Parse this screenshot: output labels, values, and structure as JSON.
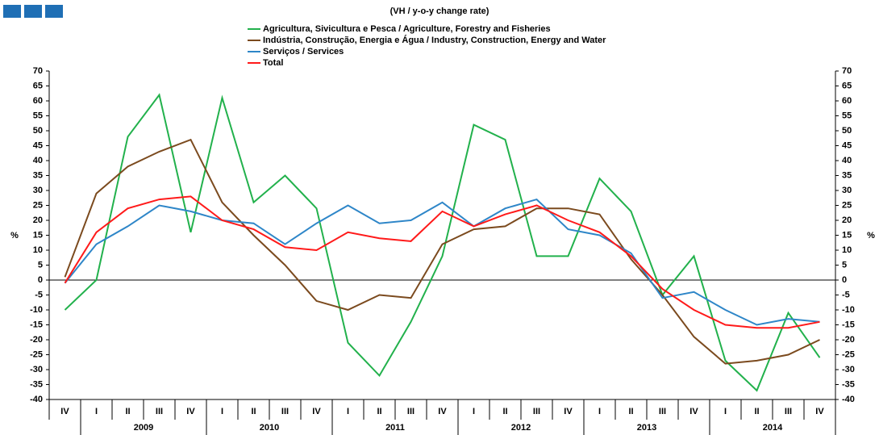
{
  "chart_data": {
    "type": "line",
    "subtitle": "(VH / y-o-y change rate)",
    "y_label": "%",
    "categories": [
      "IV",
      "I",
      "II",
      "III",
      "IV",
      "I",
      "II",
      "III",
      "IV",
      "I",
      "II",
      "III",
      "IV",
      "I",
      "II",
      "III",
      "IV",
      "I",
      "II",
      "III",
      "IV",
      "I",
      "II",
      "III",
      "IV"
    ],
    "groups": [
      "2009",
      "2010",
      "2011",
      "2012",
      "2013",
      "2014"
    ],
    "series": [
      {
        "name": "Agricultura, Sivicultura e Pesca / Agriculture, Forestry and Fisheries",
        "color": "#22b14c",
        "values": [
          -10,
          0,
          48,
          62,
          16,
          61,
          26,
          35,
          24,
          -21,
          -32,
          -14,
          8,
          52,
          47,
          8,
          8,
          34,
          23,
          -5,
          8,
          -27,
          -37,
          -11,
          -26
        ]
      },
      {
        "name": "Indústria, Construção, Energia e Água / Industry, Construction, Energy and Water",
        "color": "#7b4a1e",
        "values": [
          1,
          29,
          38,
          43,
          47,
          26,
          15,
          5,
          -7,
          -10,
          -5,
          -6,
          12,
          17,
          18,
          24,
          24,
          22,
          7,
          -5,
          -19,
          -28,
          -27,
          -25,
          -20
        ]
      },
      {
        "name": "Serviços / Services",
        "color": "#2e86c8",
        "values": [
          -1,
          12,
          18,
          25,
          23,
          20,
          19,
          12,
          19,
          25,
          19,
          20,
          26,
          18,
          24,
          27,
          17,
          15,
          9,
          -6,
          -4,
          -10,
          -15,
          -13,
          -14
        ]
      },
      {
        "name": "Total",
        "color": "#ff1a1a",
        "values": [
          -1,
          16,
          24,
          27,
          28,
          20,
          17,
          11,
          10,
          16,
          14,
          13,
          23,
          18,
          22,
          25,
          20,
          16,
          8,
          -3,
          -10,
          -15,
          -16,
          -16,
          -14
        ]
      }
    ],
    "ylim": [
      -40,
      70
    ],
    "yticks": [
      -40,
      -35,
      -30,
      -25,
      -20,
      -15,
      -10,
      -5,
      0,
      5,
      10,
      15,
      20,
      25,
      30,
      35,
      40,
      45,
      50,
      55,
      60,
      65,
      70
    ]
  }
}
